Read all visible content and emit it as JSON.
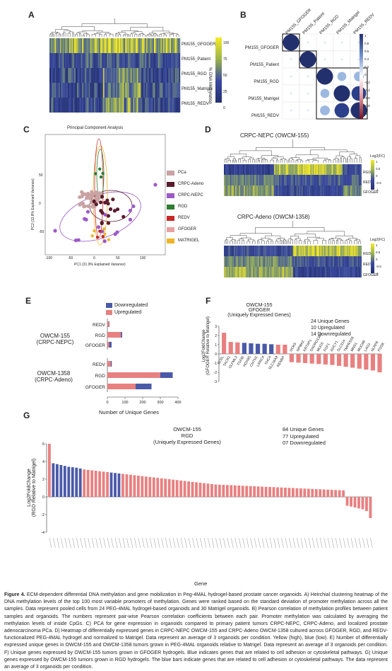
{
  "panels": {
    "A": {
      "letter": "A",
      "rows": [
        "PM155_GFOGER",
        "PM155_Patient",
        "PM155_RGD",
        "PM155_Matrigel",
        "PM155_REDV"
      ],
      "colorbar_ticks": [
        "100",
        "75",
        "50",
        "25",
        "0"
      ],
      "colorbar_label": "% DNA Methylation"
    },
    "B": {
      "letter": "B",
      "labels": [
        "PM155_GFOGER",
        "PM155_Patient",
        "PM155_RGD",
        "PM155_Matrigel",
        "PM155_REDV"
      ],
      "colorbar_ticks": [
        "1",
        "0.8",
        "0.6",
        "0.4",
        "0.2",
        "0",
        "-0.2",
        "-0.4",
        "-0.6",
        "-0.8",
        "-1"
      ]
    },
    "C": {
      "letter": "C",
      "title": "Principal Component Analysis",
      "xlabel": "PC1 (21.9% Explained Variance)",
      "ylabel": "PC2 (13.8% Explained Variance)",
      "xticks": [
        "-100",
        "-50",
        "0",
        "50",
        "100"
      ],
      "yticks": [
        "50",
        "0",
        "-50"
      ],
      "legend": [
        {
          "label": "PCa",
          "color": "#c9a3a3"
        },
        {
          "label": "CRPC-Adeno",
          "color": "#5a1a2a"
        },
        {
          "label": "CRPC-NEPC",
          "color": "#9b59c8"
        },
        {
          "label": "RGD",
          "color": "#2e7d32"
        },
        {
          "label": "REDV",
          "color": "#c62828"
        },
        {
          "label": "GFOGER",
          "color": "#e8a0a0"
        },
        {
          "label": "MATRIGEL",
          "color": "#f0b429"
        }
      ]
    },
    "D": {
      "letter": "D",
      "title1": "CRPC-NEPC (OWCM-155)",
      "title2": "CRPC-Adeno (OWCM-1358)",
      "rows": [
        "RGD",
        "REDV",
        "GFOGER"
      ],
      "colorbar_label": "Log2(FC)",
      "colorbar_ticks": [
        "1",
        "0.5",
        "0",
        "-0.5",
        "-1"
      ]
    },
    "E": {
      "letter": "E",
      "legend": [
        {
          "label": "Downregulated",
          "color": "#4a5aa8"
        },
        {
          "label": "Upregulated",
          "color": "#e88080"
        }
      ],
      "group1": "OWCM-155",
      "group1b": "(CRPC-NEPC)",
      "group2": "OWCM-1358",
      "group2b": "(CRPC-Adeno)",
      "xlabel": "Number of Unique Genes",
      "xticks": [
        "0",
        "100",
        "200",
        "300",
        "400"
      ]
    },
    "F": {
      "letter": "F",
      "title1": "OWCM-155",
      "title2": "GFOGER",
      "title3": "(Uniquely Expressed Genes)",
      "stats1": "24 Unique Genes",
      "stats2": "10 Upregulated",
      "stats3": "14 Downregulated",
      "ylabel1": "Log2FoldChange",
      "ylabel2": "(GFOGER Relative to Matrigel)",
      "yticks": [
        "3",
        "2",
        "1",
        "0",
        "-1",
        "-2",
        "-3"
      ]
    },
    "G": {
      "letter": "G",
      "title1": "OWCM-155",
      "title2": "RGD",
      "title3": "(Uniquely Expressed Genes)",
      "stats1": "84 Unique Genes",
      "stats2": "77 Upregulated",
      "stats3": "07 Downregulated",
      "ylabel1": "Log2FoldChange",
      "ylabel2": "(RGD Relative to Matrigel)",
      "yticks": [
        "6",
        "4",
        "2",
        "0",
        "-2",
        "-4"
      ],
      "xlabel": "Gene"
    }
  },
  "chart_data": [
    {
      "type": "bar",
      "panel": "E",
      "categories": [
        "REDV",
        "RGD",
        "GFOGER",
        "REDV",
        "RGD",
        "GFOGER"
      ],
      "groups": [
        "OWCM-155 (CRPC-NEPC)",
        "OWCM-155 (CRPC-NEPC)",
        "OWCM-155 (CRPC-NEPC)",
        "OWCM-1358 (CRPC-Adeno)",
        "OWCM-1358 (CRPC-Adeno)",
        "OWCM-1358 (CRPC-Adeno)"
      ],
      "series": [
        {
          "name": "Upregulated",
          "values": [
            10,
            77,
            10,
            20,
            300,
            160
          ]
        },
        {
          "name": "Downregulated",
          "values": [
            2,
            7,
            14,
            5,
            70,
            90
          ]
        }
      ],
      "xlabel": "Number of Unique Genes",
      "xlim": [
        0,
        400
      ]
    },
    {
      "type": "bar",
      "panel": "F",
      "categories": [
        "SCEL",
        "TACR1",
        "OLFML3",
        "TGFBI",
        "HOXB5",
        "CNTN1",
        "LRRC4",
        "SHC4",
        "SLC16A9",
        "RENBP",
        "DOK5",
        "NPMA2",
        "KRTAP1",
        "SNORD136B",
        "MUC6",
        "FGF1",
        "ADCY1",
        "SLC31A",
        "TMPRSS6",
        "MNS1",
        "MUC6B",
        "LAG3",
        "NLRP6",
        "FOSB"
      ],
      "values": [
        2.3,
        1.3,
        1.25,
        1.2,
        1.15,
        1.1,
        1.1,
        1.05,
        1.0,
        1.0,
        -0.9,
        -0.95,
        -1.0,
        -1.05,
        -1.1,
        -1.15,
        -1.2,
        -1.3,
        -1.4,
        -1.5,
        -1.6,
        -1.7,
        -1.8,
        -2.0
      ],
      "adhesion_flag": [
        false,
        false,
        false,
        true,
        true,
        true,
        true,
        true,
        false,
        false,
        false,
        false,
        false,
        false,
        false,
        false,
        false,
        false,
        false,
        false,
        false,
        false,
        false,
        false
      ],
      "ylabel": "Log2FoldChange (GFOGER Relative to Matrigel)",
      "ylim": [
        -3,
        3
      ]
    },
    {
      "type": "bar",
      "panel": "G",
      "n_genes": 84,
      "values": [
        6,
        3.8,
        3.7,
        3.6,
        3.5,
        3.4,
        3.35,
        3.3,
        3.2,
        3.1,
        3.05,
        3.0,
        2.95,
        2.9,
        2.85,
        2.8,
        2.75,
        2.7,
        2.65,
        2.6,
        2.55,
        2.5,
        2.45,
        2.4,
        2.35,
        2.3,
        2.25,
        2.2,
        2.15,
        2.1,
        2.05,
        2.0,
        1.95,
        1.9,
        1.85,
        1.8,
        1.75,
        1.7,
        1.65,
        1.6,
        1.55,
        1.5,
        1.45,
        1.4,
        1.38,
        1.36,
        1.34,
        1.32,
        1.3,
        1.28,
        1.26,
        1.24,
        1.22,
        1.2,
        1.18,
        1.16,
        1.14,
        1.12,
        1.1,
        1.08,
        1.06,
        1.04,
        1.02,
        1.0,
        0.98,
        0.96,
        0.94,
        0.92,
        0.9,
        0.88,
        0.86,
        0.84,
        0.82,
        0.8,
        0.78,
        0.76,
        0.74,
        -1.0,
        -1.1,
        -1.2,
        -1.3,
        -1.4,
        -1.6,
        -2.4
      ],
      "ylabel": "Log2FoldChange (RGD Relative to Matrigel)",
      "xlabel": "Gene",
      "ylim": [
        -4,
        6
      ]
    }
  ],
  "caption": {
    "lead": "Figure 4.",
    "text": " ECM-dependent differential DNA methylation and gene mobilization in Peg-4MAL hydrogel-based prostate cancer organoids. A) Heirchial clustering heatmap of the DNA methylation levels of the top 100 most variable promoters of methylation. Genes were ranked based on the standard deviation of promoter methylation across all the samples. Data represent pooled cells from 24 PEG-4MAL hydrogel-based organoids and 30 Matrigel organoids. B) Pearson correlation of methylation profiles between patient samples and organoids. The numbers represent pair-wise Pearson correlation coefficients between each pair. Promoter methylation was calculated by averaging the methylation levels of inside CpGs. C) PCA for gene expression in organoids compared to primary patient tumors CRPC-NEPC, CRPC-Adeno, and localized prostate adenocarcinoma PCa. D) Heatmap of differentially expressed genes in CRPC-NEPC OWCM-155 and CRPC-Adeno OWCM-1358 cultured across GFOGER, RGD, and REDV-functionalized PEG-4MAL hydrogel and normalized to Matrigel. Data represent an average of 3 organoids per condition. Yellow (high), blue (low). E) Number of differentially expressed unique genes in OWCM-155 and OWCM-1358 tumors grown in PEG-4MAL organoids relative to Matrigel. Data represent an average of 3 organoids per condition. F) Unique genes expressed by OWCM-155 tumors grown in GFOGER hydrogels. Blue indicates genes that are related to cell adhesion or cytoskeletal pathways. G) Unique genes expressed by OWCM-155 tumors grown in RGD hydrogels. The blue bars indicate genes that are related to cell adhesion or cytoskeletal pathways. The data represent an average of 3 organoids per condition."
  }
}
